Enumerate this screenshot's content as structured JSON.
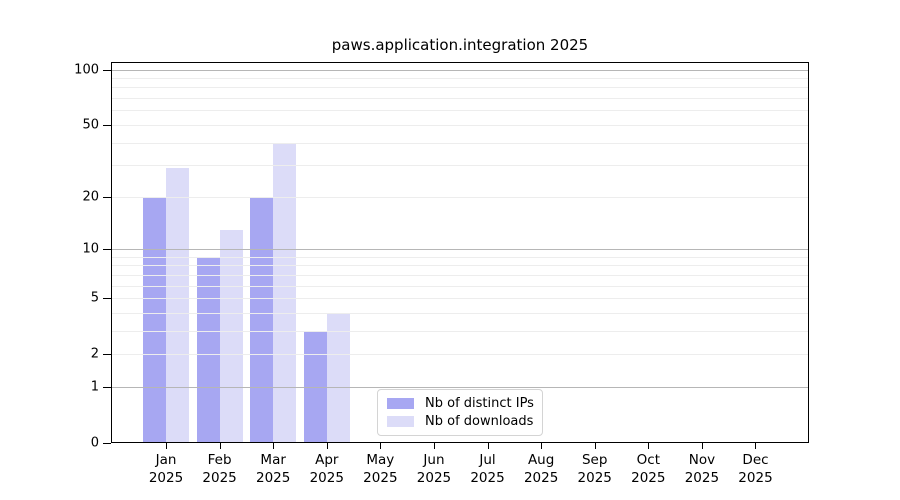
{
  "chart_data": {
    "type": "bar",
    "title": "paws.application.integration 2025",
    "categories": [
      {
        "month": "Jan",
        "year": "2025"
      },
      {
        "month": "Feb",
        "year": "2025"
      },
      {
        "month": "Mar",
        "year": "2025"
      },
      {
        "month": "Apr",
        "year": "2025"
      },
      {
        "month": "May",
        "year": "2025"
      },
      {
        "month": "Jun",
        "year": "2025"
      },
      {
        "month": "Jul",
        "year": "2025"
      },
      {
        "month": "Aug",
        "year": "2025"
      },
      {
        "month": "Sep",
        "year": "2025"
      },
      {
        "month": "Oct",
        "year": "2025"
      },
      {
        "month": "Nov",
        "year": "2025"
      },
      {
        "month": "Dec",
        "year": "2025"
      }
    ],
    "series": [
      {
        "name": "Nb of distinct IPs",
        "color": "#a7a7f2",
        "values": [
          20,
          9,
          20,
          3,
          0,
          0,
          0,
          0,
          0,
          0,
          0,
          0
        ]
      },
      {
        "name": "Nb of downloads",
        "color": "#dcdcf8",
        "values": [
          29,
          13,
          40,
          4,
          0,
          0,
          0,
          0,
          0,
          0,
          0,
          0
        ]
      }
    ],
    "y_axis": {
      "scale": "log10(value+1)",
      "ticks": [
        0,
        1,
        2,
        5,
        10,
        20,
        50,
        100
      ],
      "ylim": [
        0,
        110
      ]
    },
    "grid": {
      "decade_values": [
        1,
        10,
        100
      ],
      "minor_values": [
        2,
        3,
        4,
        5,
        6,
        7,
        8,
        9,
        20,
        30,
        40,
        50,
        60,
        70,
        80,
        90
      ],
      "decade_color": "#b6b6b6",
      "minor_color": "#ededed"
    },
    "legend": {
      "position": "bottom-center"
    }
  }
}
